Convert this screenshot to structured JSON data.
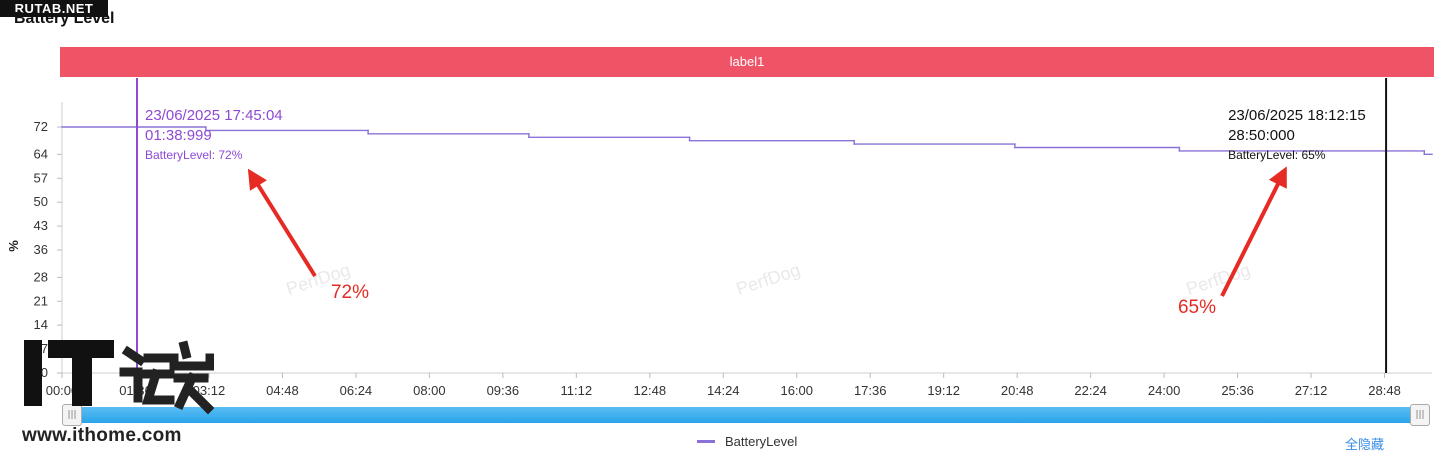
{
  "brand": {
    "site": "RUTAB.NET",
    "watermark_url": "www.ithome.com",
    "watermark_logo_text": "IT之家",
    "chart_watermark": "PerfDog"
  },
  "label_bar": {
    "text": "label1",
    "color": "#ee5366"
  },
  "chart_data": {
    "type": "line",
    "title": "Battery Level",
    "ylabel": "%",
    "ylim": [
      0,
      72
    ],
    "yticks": [
      "0",
      "7",
      "14",
      "21",
      "28",
      "36",
      "43",
      "50",
      "57",
      "64",
      "72"
    ],
    "x_range": [
      "00:00",
      "29:50"
    ],
    "xticks": [
      "00:00",
      "01:36",
      "03:12",
      "04:48",
      "06:24",
      "08:00",
      "09:36",
      "11:12",
      "12:48",
      "14:24",
      "16:00",
      "17:36",
      "19:12",
      "20:48",
      "22:24",
      "24:00",
      "25:36",
      "27:12",
      "28:48"
    ],
    "series": [
      {
        "name": "BatteryLevel",
        "color": "#8a72d8",
        "points": [
          [
            "00:00",
            72
          ],
          [
            "03:08",
            72
          ],
          [
            "03:08",
            71
          ],
          [
            "06:40",
            71
          ],
          [
            "06:40",
            70
          ],
          [
            "10:10",
            70
          ],
          [
            "10:10",
            69
          ],
          [
            "13:40",
            69
          ],
          [
            "13:40",
            68
          ],
          [
            "17:15",
            68
          ],
          [
            "17:15",
            67
          ],
          [
            "20:45",
            67
          ],
          [
            "20:45",
            66
          ],
          [
            "24:20",
            66
          ],
          [
            "24:20",
            65
          ],
          [
            "29:40",
            65
          ],
          [
            "29:40",
            64
          ],
          [
            "29:50",
            64
          ]
        ]
      }
    ],
    "tooltips": [
      {
        "date": "23/06/2025 17:45:04",
        "elapsed": "01:38:999",
        "at": "01:38",
        "value_text": "BatteryLevel: 72%",
        "color": "#8e49d3"
      },
      {
        "date": "23/06/2025 18:12:15",
        "elapsed": "28:50:000",
        "at": "28:50",
        "value_text": "BatteryLevel: 65%",
        "color": "#111111"
      }
    ],
    "annotations": [
      {
        "text": "72%",
        "color": "#e52b23"
      },
      {
        "text": "65%",
        "color": "#e52b23"
      }
    ],
    "legend": {
      "placement": "bottom-center",
      "items": [
        "BatteryLevel"
      ]
    },
    "grid": false
  },
  "controls": {
    "hide_all": "全隐藏",
    "handle_glyph": "|||"
  }
}
